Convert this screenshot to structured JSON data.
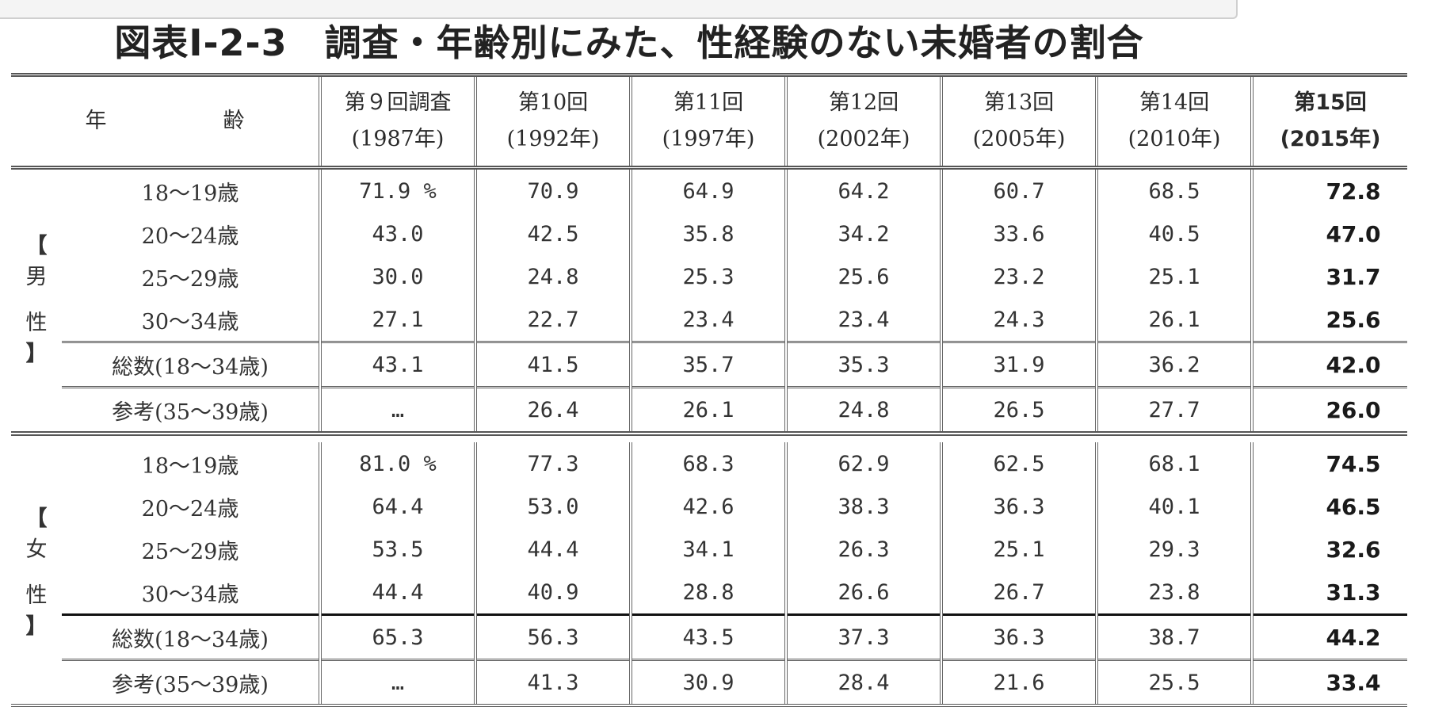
{
  "title": "図表Ⅰ-2-3　調査・年齢別にみた、性経験のない未婚者の割合",
  "header": {
    "age_label": "年　齢",
    "surveys": [
      {
        "name": "第９回調査",
        "year": "(1987年)"
      },
      {
        "name": "第10回",
        "year": "(1992年)"
      },
      {
        "name": "第11回",
        "year": "(1997年)"
      },
      {
        "name": "第12回",
        "year": "(2002年)"
      },
      {
        "name": "第13回",
        "year": "(2005年)"
      },
      {
        "name": "第14回",
        "year": "(2010年)"
      },
      {
        "name": "第15回",
        "year": "(2015年)"
      }
    ]
  },
  "chart_data": {
    "type": "table",
    "title": "図表Ⅰ-2-3　調査・年齢別にみた、性経験のない未婚者の割合",
    "unit": "%",
    "columns": [
      "第９回調査(1987年)",
      "第10回(1992年)",
      "第11回(1997年)",
      "第12回(2002年)",
      "第13回(2005年)",
      "第14回(2010年)",
      "第15回(2015年)"
    ],
    "groups": [
      {
        "label": "【男性】",
        "label_chars": [
          "男",
          "性"
        ],
        "rows": [
          {
            "age": "18～19歳",
            "values": [
              "71.9 %",
              "70.9",
              "64.9",
              "64.2",
              "60.7",
              "68.5",
              "72.8"
            ]
          },
          {
            "age": "20～24歳",
            "values": [
              "43.0",
              "42.5",
              "35.8",
              "34.2",
              "33.6",
              "40.5",
              "47.0"
            ]
          },
          {
            "age": "25～29歳",
            "values": [
              "30.0",
              "24.8",
              "25.3",
              "25.6",
              "23.2",
              "25.1",
              "31.7"
            ]
          },
          {
            "age": "30～34歳",
            "values": [
              "27.1",
              "22.7",
              "23.4",
              "23.4",
              "24.3",
              "26.1",
              "25.6"
            ]
          }
        ],
        "total": {
          "age": "総数(18～34歳)",
          "values": [
            "43.1",
            "41.5",
            "35.7",
            "35.3",
            "31.9",
            "36.2",
            "42.0"
          ]
        },
        "reference": {
          "age": "参考(35～39歳)",
          "values": [
            "…",
            "26.4",
            "26.1",
            "24.8",
            "26.5",
            "27.7",
            "26.0"
          ]
        }
      },
      {
        "label": "【女性】",
        "label_chars": [
          "女",
          "性"
        ],
        "rows": [
          {
            "age": "18～19歳",
            "values": [
              "81.0 %",
              "77.3",
              "68.3",
              "62.9",
              "62.5",
              "68.1",
              "74.5"
            ]
          },
          {
            "age": "20～24歳",
            "values": [
              "64.4",
              "53.0",
              "42.6",
              "38.3",
              "36.3",
              "40.1",
              "46.5"
            ]
          },
          {
            "age": "25～29歳",
            "values": [
              "53.5",
              "44.4",
              "34.1",
              "26.3",
              "25.1",
              "29.3",
              "32.6"
            ]
          },
          {
            "age": "30～34歳",
            "values": [
              "44.4",
              "40.9",
              "28.8",
              "26.6",
              "26.7",
              "23.8",
              "31.3"
            ]
          }
        ],
        "total": {
          "age": "総数(18～34歳)",
          "values": [
            "65.3",
            "56.3",
            "43.5",
            "37.3",
            "36.3",
            "38.7",
            "44.2"
          ]
        },
        "reference": {
          "age": "参考(35～39歳)",
          "values": [
            "…",
            "41.3",
            "30.9",
            "28.4",
            "21.6",
            "25.5",
            "33.4"
          ]
        }
      }
    ]
  }
}
